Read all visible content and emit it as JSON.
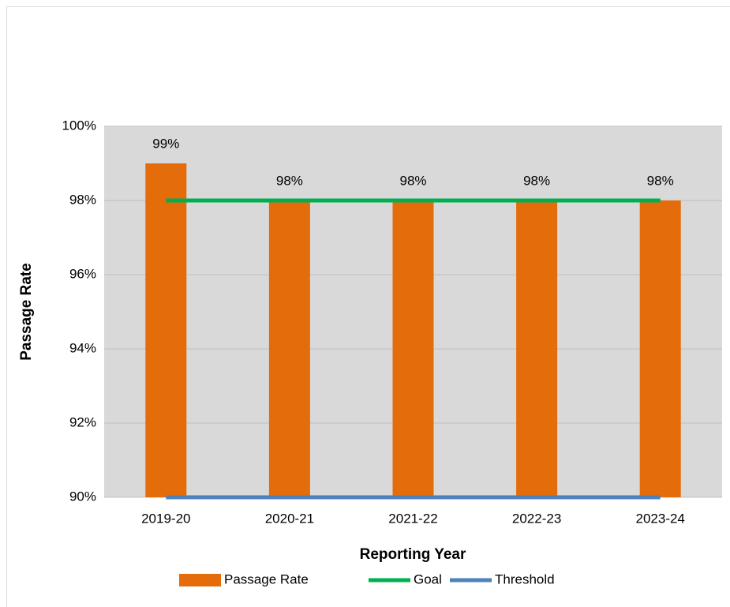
{
  "chart_data": {
    "type": "bar",
    "x_label": "Reporting Year",
    "y_label": "Passage Rate",
    "categories": [
      "2019-20",
      "2020-21",
      "2021-22",
      "2022-23",
      "2023-24"
    ],
    "series": [
      {
        "name": "Passage Rate",
        "type": "bar",
        "color": "#e46c0a",
        "values": [
          99,
          98,
          98,
          98,
          98
        ],
        "value_labels": [
          "99%",
          "98%",
          "98%",
          "98%",
          "98%"
        ]
      },
      {
        "name": "Goal",
        "type": "line",
        "color": "#00b050",
        "values": [
          98,
          98,
          98,
          98,
          98
        ]
      },
      {
        "name": "Threshold",
        "type": "line",
        "color": "#4f81bd",
        "values": [
          90,
          90,
          90,
          90,
          90
        ]
      }
    ],
    "ylim": [
      90,
      100
    ],
    "yticks": [
      {
        "value": 90,
        "label": "90%"
      },
      {
        "value": 92,
        "label": "92%"
      },
      {
        "value": 94,
        "label": "94%"
      },
      {
        "value": 96,
        "label": "96%"
      },
      {
        "value": 98,
        "label": "98%"
      },
      {
        "value": 100,
        "label": "100%"
      }
    ],
    "grid": true,
    "legend": "bottom"
  }
}
